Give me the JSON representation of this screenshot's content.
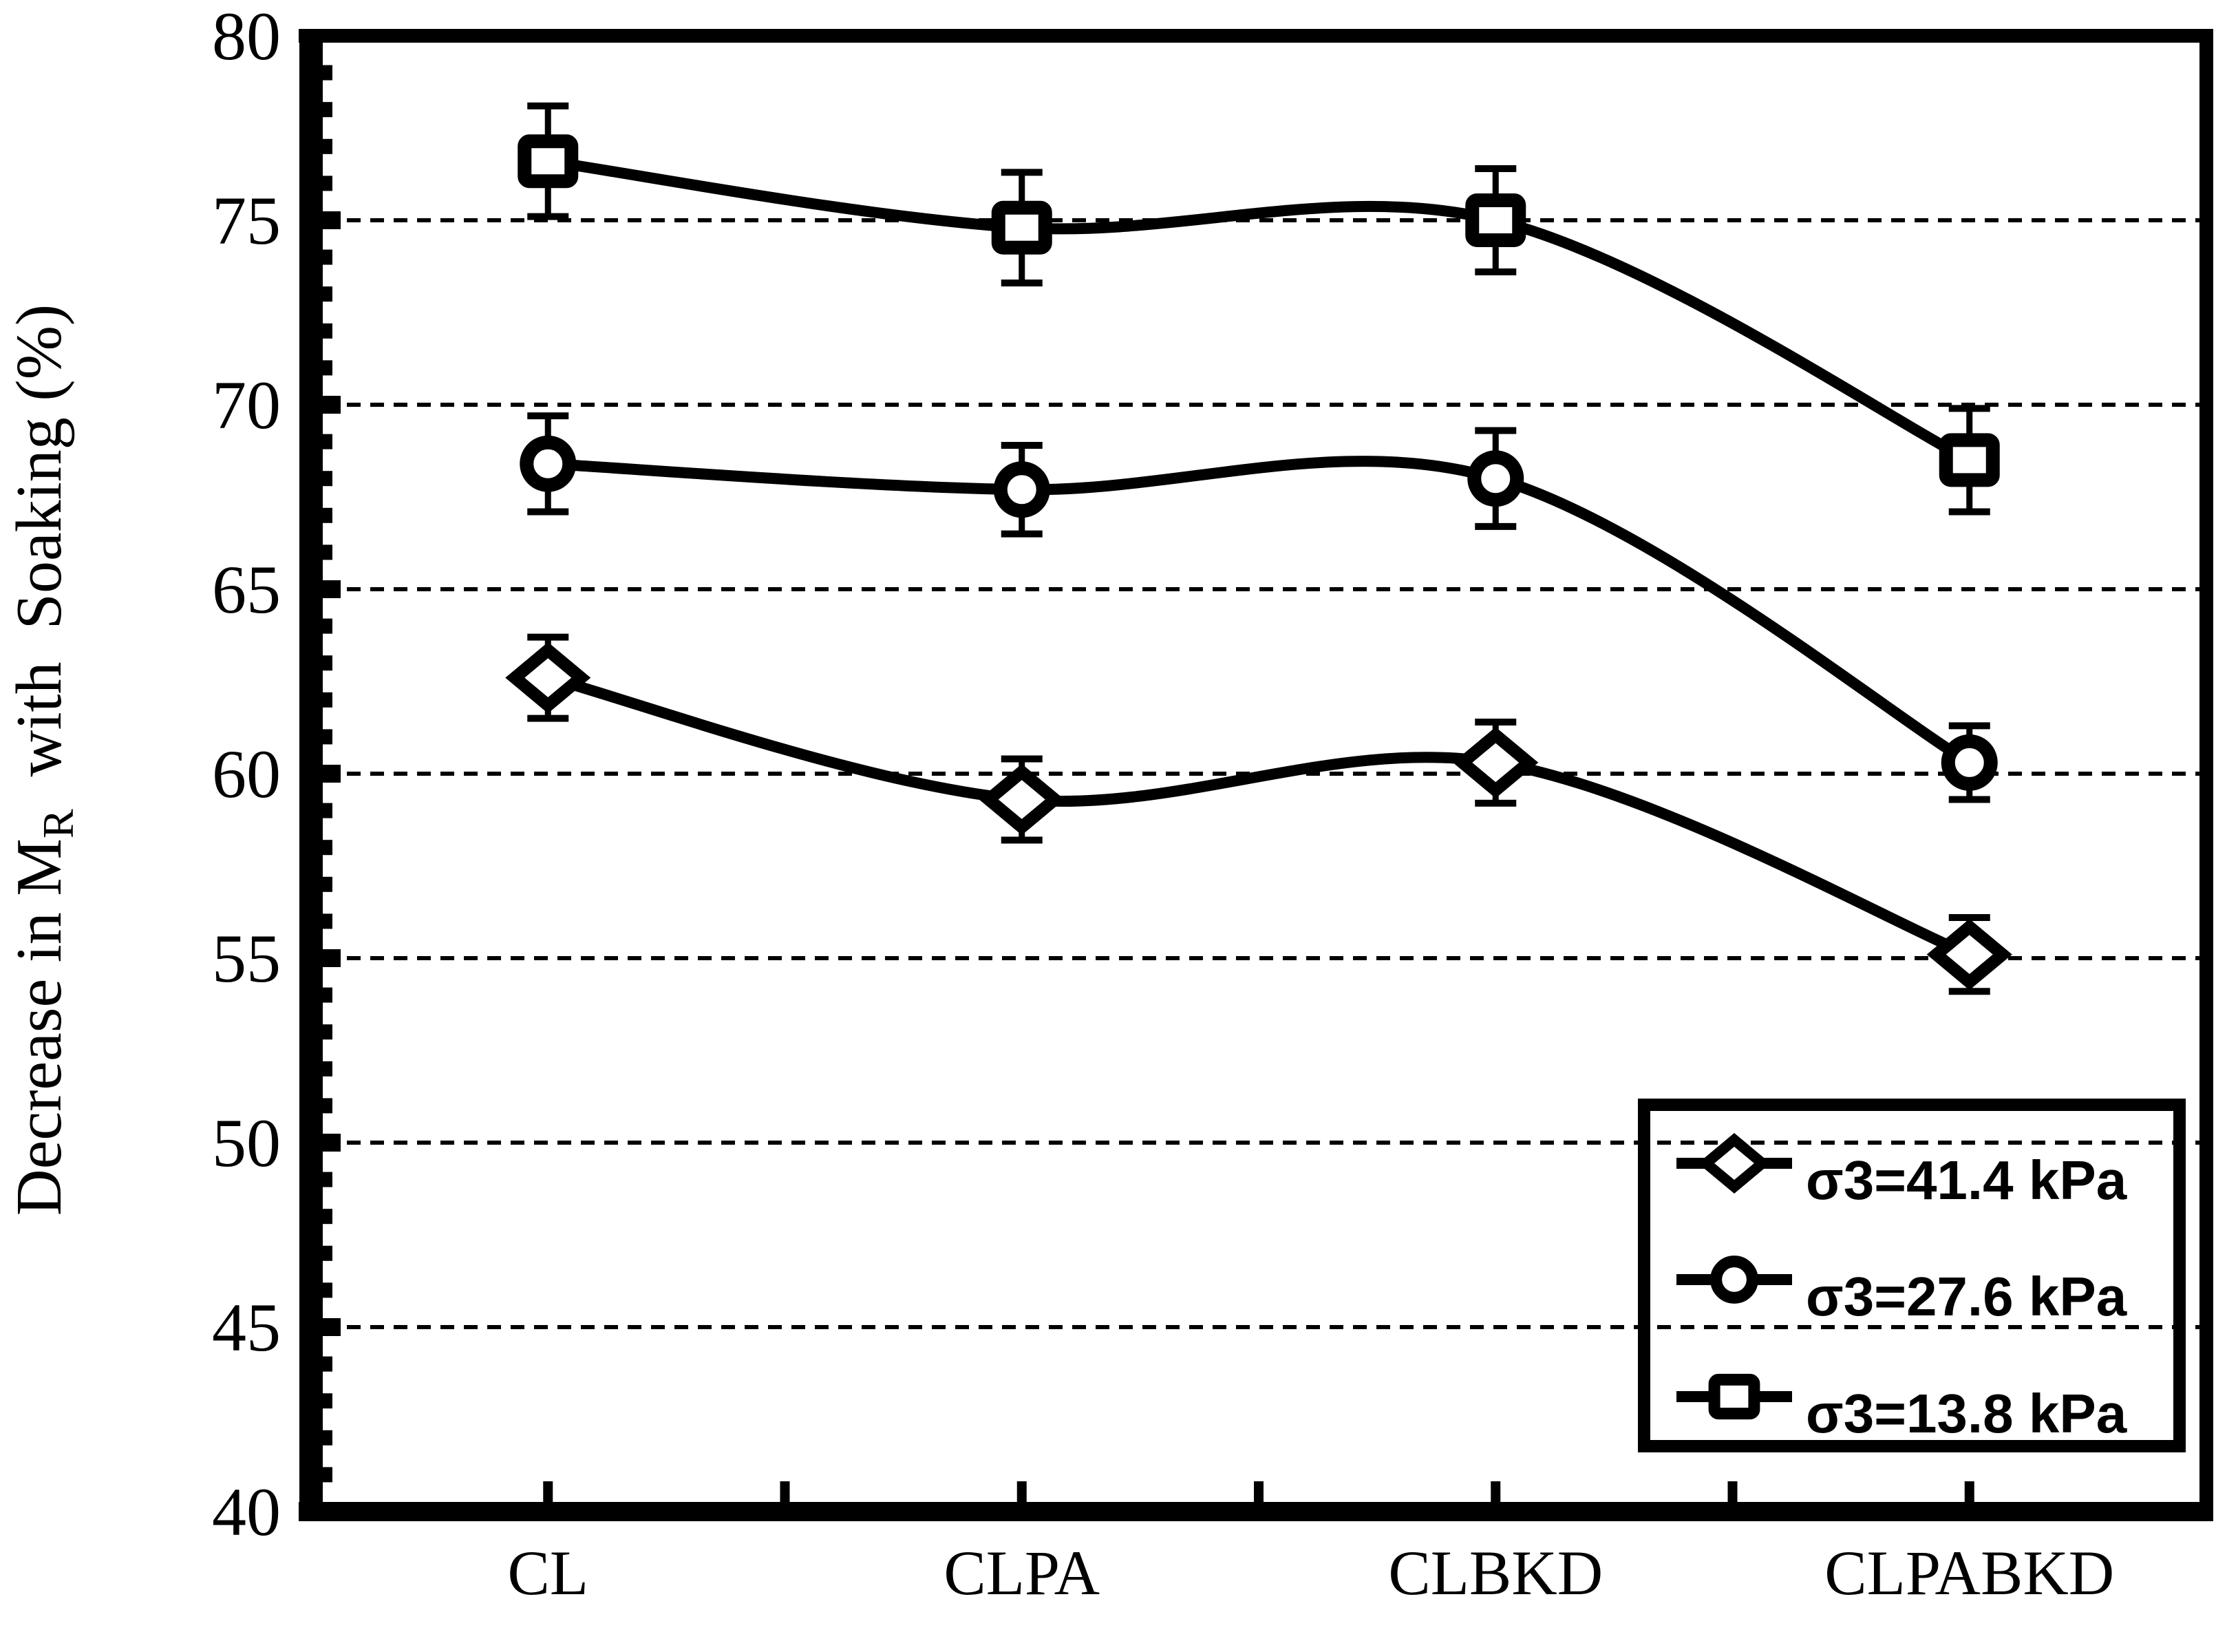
{
  "figure": {
    "background_color": "#ffffff",
    "ink_color": "#000000"
  },
  "chart_data": {
    "type": "line",
    "categories": [
      "CL",
      "CLPA",
      "CLBKD",
      "CLPABKD"
    ],
    "series": [
      {
        "name": "σ3=41.4 kPa",
        "marker": "diamond",
        "values": [
          62.6,
          59.3,
          60.3,
          55.1
        ],
        "error": [
          1.1,
          1.1,
          1.1,
          1.0
        ]
      },
      {
        "name": "σ3=27.6 kPa",
        "marker": "circle",
        "values": [
          68.4,
          67.7,
          68.0,
          60.3
        ],
        "error": [
          1.3,
          1.2,
          1.3,
          1.0
        ]
      },
      {
        "name": "σ3=13.8 kPa",
        "marker": "square",
        "values": [
          76.6,
          74.8,
          75.0,
          68.5
        ],
        "error": [
          1.5,
          1.5,
          1.4,
          1.4
        ]
      }
    ],
    "ylabel": {
      "pre": "Decrease in M",
      "sub": "R",
      "post": "  with  Soaking (%)"
    },
    "xlabel": "",
    "title": "",
    "ylim": [
      40,
      80
    ],
    "yticks": [
      80,
      75,
      70,
      65,
      60,
      55,
      50,
      45,
      40
    ],
    "ytick_step": 5,
    "minor_ytick_step": 1,
    "gridlines": {
      "values": [
        75,
        70,
        65,
        60,
        55,
        50,
        45
      ],
      "style": "dashed"
    },
    "line_style": "smooth",
    "marker_fill": "#ffffff",
    "line_color": "#000000",
    "legend_position": "lower-right"
  }
}
